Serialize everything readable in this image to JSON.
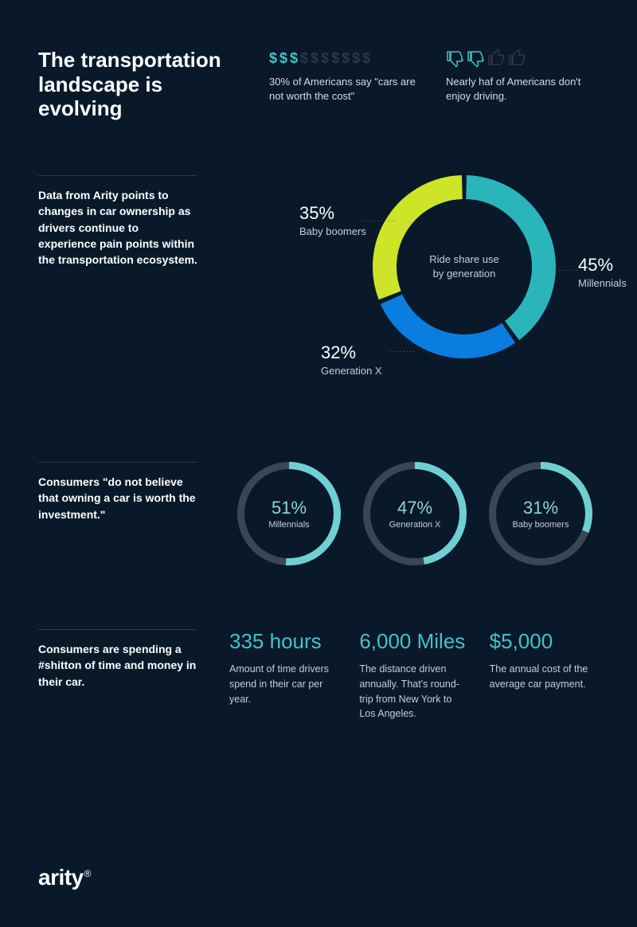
{
  "colors": {
    "bg": "#09192a",
    "accent": "#44c2c7",
    "textMuted": "#c5ced6",
    "divider": "#2a3948",
    "iconOff": "#2a3948",
    "ringTrack": "#3a4652",
    "ringFill": "#6fd0d4"
  },
  "hero": {
    "title": "The transportation landscape is evolving",
    "stat1": {
      "icons": {
        "on": 3,
        "total": 10,
        "glyph": "$",
        "onColor": "#44c2c7",
        "offColor": "#2a3948",
        "fontSize": 18
      },
      "text": "30% of Americans say \"cars are not worth the cost\""
    },
    "stat2": {
      "thumbs": {
        "down": 2,
        "up": 2,
        "onColor": "#44c2c7",
        "offColor": "#2a3948"
      },
      "text": "Nearly haf of Americans don't enjoy driving."
    }
  },
  "donutSection": {
    "sideText": "Data from Arity points to changes in car ownership as drivers continue to experience pain points within the transportation ecosystem.",
    "donut": {
      "centerLine1": "Ride share use",
      "centerLine2": "by generation",
      "size": 230,
      "thickness": 30,
      "gapDeg": 3,
      "slices": [
        {
          "label": "Millennials",
          "value": 45,
          "color": "#2ab5bb",
          "labelPos": "right"
        },
        {
          "label": "Generation X",
          "value": 32,
          "color": "#0a7de0",
          "labelPos": "bottom-left"
        },
        {
          "label": "Baby boomers",
          "value": 35,
          "color": "#cde428",
          "labelPos": "top-left"
        }
      ]
    }
  },
  "ringsSection": {
    "sideText": "Consumers \"do not believe that owning a car is worth the investment.\"",
    "rings": [
      {
        "label": "Millennials",
        "value": 51
      },
      {
        "label": "Generation X",
        "value": 47
      },
      {
        "label": "Baby boomers",
        "value": 31
      }
    ],
    "ringStyle": {
      "size": 130,
      "thickness": 9,
      "trackColor": "#3a4652",
      "fillColor": "#6fd0d4",
      "pctColor": "#8ed6d9"
    }
  },
  "statsSection": {
    "sideText": "Consumers are spending a #shitton of time and money in their car.",
    "items": [
      {
        "value": "335 hours",
        "text": "Amount of time drivers spend in their car per year."
      },
      {
        "value": "6,000 Miles",
        "text": "The distance driven annually. That's round-trip from New York to Los Angeles."
      },
      {
        "value": "$5,000",
        "text": "The annual cost of the average car payment."
      }
    ]
  },
  "footer": {
    "brand": "arity",
    "mark": "®"
  }
}
